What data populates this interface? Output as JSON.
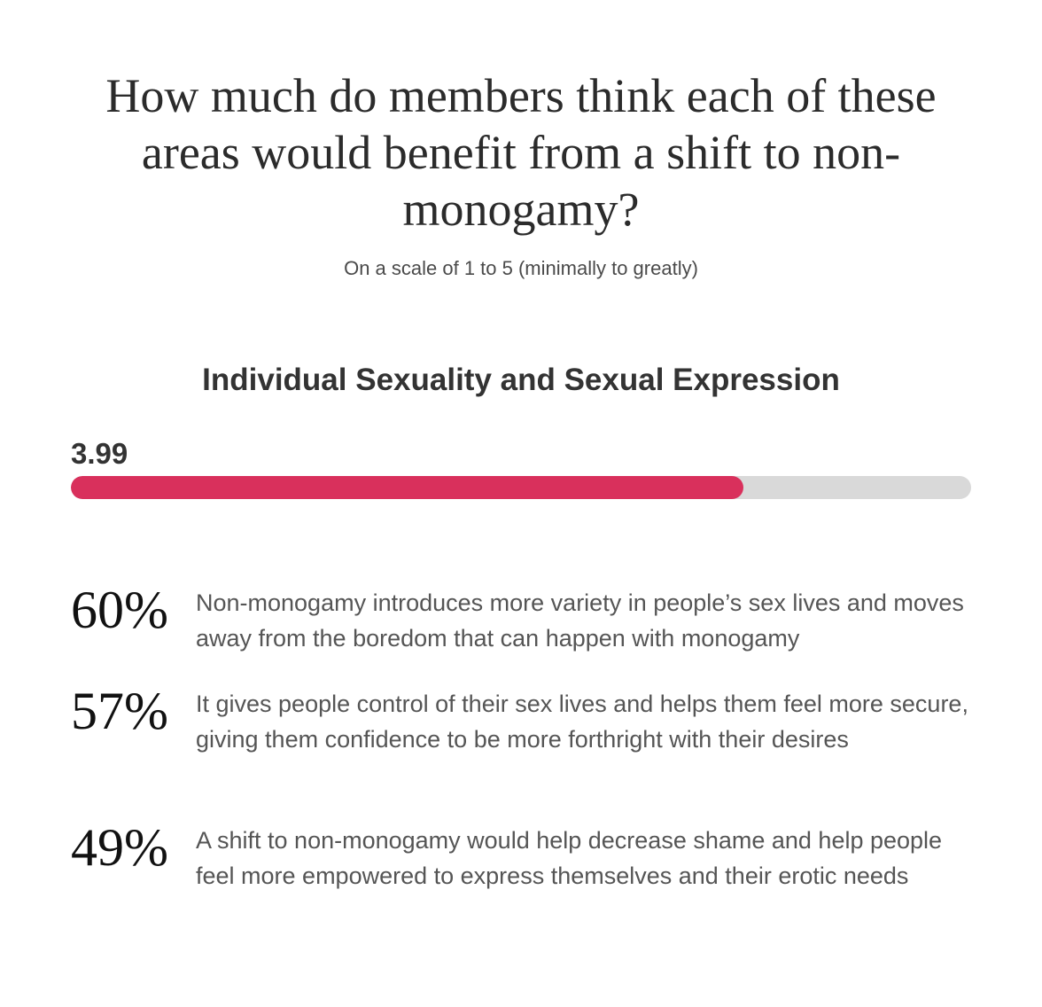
{
  "header": {
    "title": "How much do members think each of these areas would benefit from a shift to non-monogamy?",
    "subtitle": "On a scale of 1 to 5 (minimally to greatly)"
  },
  "section": {
    "title": "Individual Sexuality and Sexual Expression",
    "score_label": "3.99"
  },
  "colors": {
    "bar_fill": "#d9305c",
    "bar_track": "#d9d9d9"
  },
  "stats": [
    {
      "percent": "60%",
      "text": "Non-monogamy introduces more variety in people’s sex lives and moves away from the boredom that can happen with monogamy"
    },
    {
      "percent": "57%",
      "text": "It gives people control of their sex lives and helps them feel more secure, giving them confidence to be more forthright with their desires"
    },
    {
      "percent": "49%",
      "text": "A shift to non-monogamy would help decrease shame and help people feel more empowered to express themselves and their erotic needs"
    }
  ],
  "chart_data": {
    "type": "bar",
    "title": "Individual Sexuality and Sexual Expression",
    "categories": [
      "Individual Sexuality and Sexual Expression"
    ],
    "values": [
      3.99
    ],
    "ylim": [
      1,
      5
    ],
    "orientation": "horizontal",
    "grid": false
  }
}
